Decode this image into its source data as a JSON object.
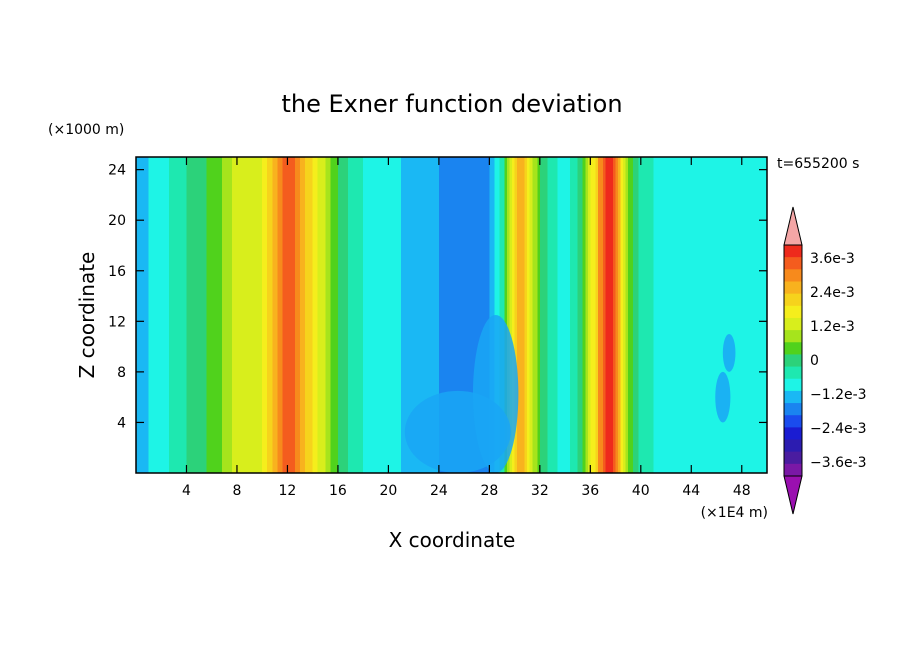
{
  "chart_data": {
    "type": "heatmap",
    "title": "the Exner function deviation",
    "xlabel": "X coordinate",
    "ylabel": "Z coordinate",
    "x_unit": "(×1E4 m)",
    "y_unit": "(×1000 m)",
    "time_label": "t=655200 s",
    "xlim": [
      0,
      50
    ],
    "ylim": [
      0,
      25
    ],
    "x_ticks": [
      4,
      8,
      12,
      16,
      20,
      24,
      28,
      32,
      36,
      40,
      44,
      48
    ],
    "y_ticks": [
      4,
      8,
      12,
      16,
      20,
      24
    ],
    "colorbar": {
      "labels": [
        "3.6e-3",
        "2.4e-3",
        "1.2e-3",
        "0",
        "−1.2e-3",
        "−2.4e-3",
        "−3.6e-3"
      ],
      "level_colors": [
        "#f4a6a6",
        "#ee2a1c",
        "#f45c1e",
        "#f78a1c",
        "#f8b21e",
        "#f6d31c",
        "#f5ee1c",
        "#d8ee1c",
        "#a6e41c",
        "#50d21c",
        "#2cd27a",
        "#1ee8b0",
        "#1ef4e6",
        "#1ab8f4",
        "#1a84f0",
        "#1a4cee",
        "#1a1cd2",
        "#2c1cb0",
        "#4a1ca0",
        "#7a18a6",
        "#9a10b0"
      ]
    },
    "x_profile": [
      [
        0,
        -1.2
      ],
      [
        1,
        -1.0
      ],
      [
        2,
        -0.8
      ],
      [
        3,
        -0.5
      ],
      [
        4,
        -0.2
      ],
      [
        5,
        0.1
      ],
      [
        6,
        0.3
      ],
      [
        7,
        0.7
      ],
      [
        8,
        1.2
      ],
      [
        9,
        1.0
      ],
      [
        10,
        1.4
      ],
      [
        11,
        2.4
      ],
      [
        12,
        3.4
      ],
      [
        12.5,
        3.2
      ],
      [
        13,
        2.6
      ],
      [
        14,
        1.8
      ],
      [
        15,
        1.0
      ],
      [
        16,
        0.2
      ],
      [
        17,
        -0.3
      ],
      [
        18,
        -0.6
      ],
      [
        20,
        -0.8
      ],
      [
        22,
        -1.2
      ],
      [
        24,
        -1.4
      ],
      [
        26,
        -1.6
      ],
      [
        28,
        -1.4
      ],
      [
        29,
        -0.5
      ],
      [
        30,
        2.0
      ],
      [
        30.5,
        2.6
      ],
      [
        31,
        1.8
      ],
      [
        32,
        0.2
      ],
      [
        33,
        -0.5
      ],
      [
        34,
        -0.8
      ],
      [
        35,
        -0.3
      ],
      [
        36,
        1.2
      ],
      [
        37,
        3.2
      ],
      [
        37.5,
        3.8
      ],
      [
        38,
        3.0
      ],
      [
        39,
        0.6
      ],
      [
        40,
        -0.4
      ],
      [
        42,
        -0.8
      ],
      [
        44,
        -1.0
      ],
      [
        46,
        -0.9
      ],
      [
        48,
        -0.9
      ],
      [
        50,
        -1.0
      ]
    ]
  }
}
